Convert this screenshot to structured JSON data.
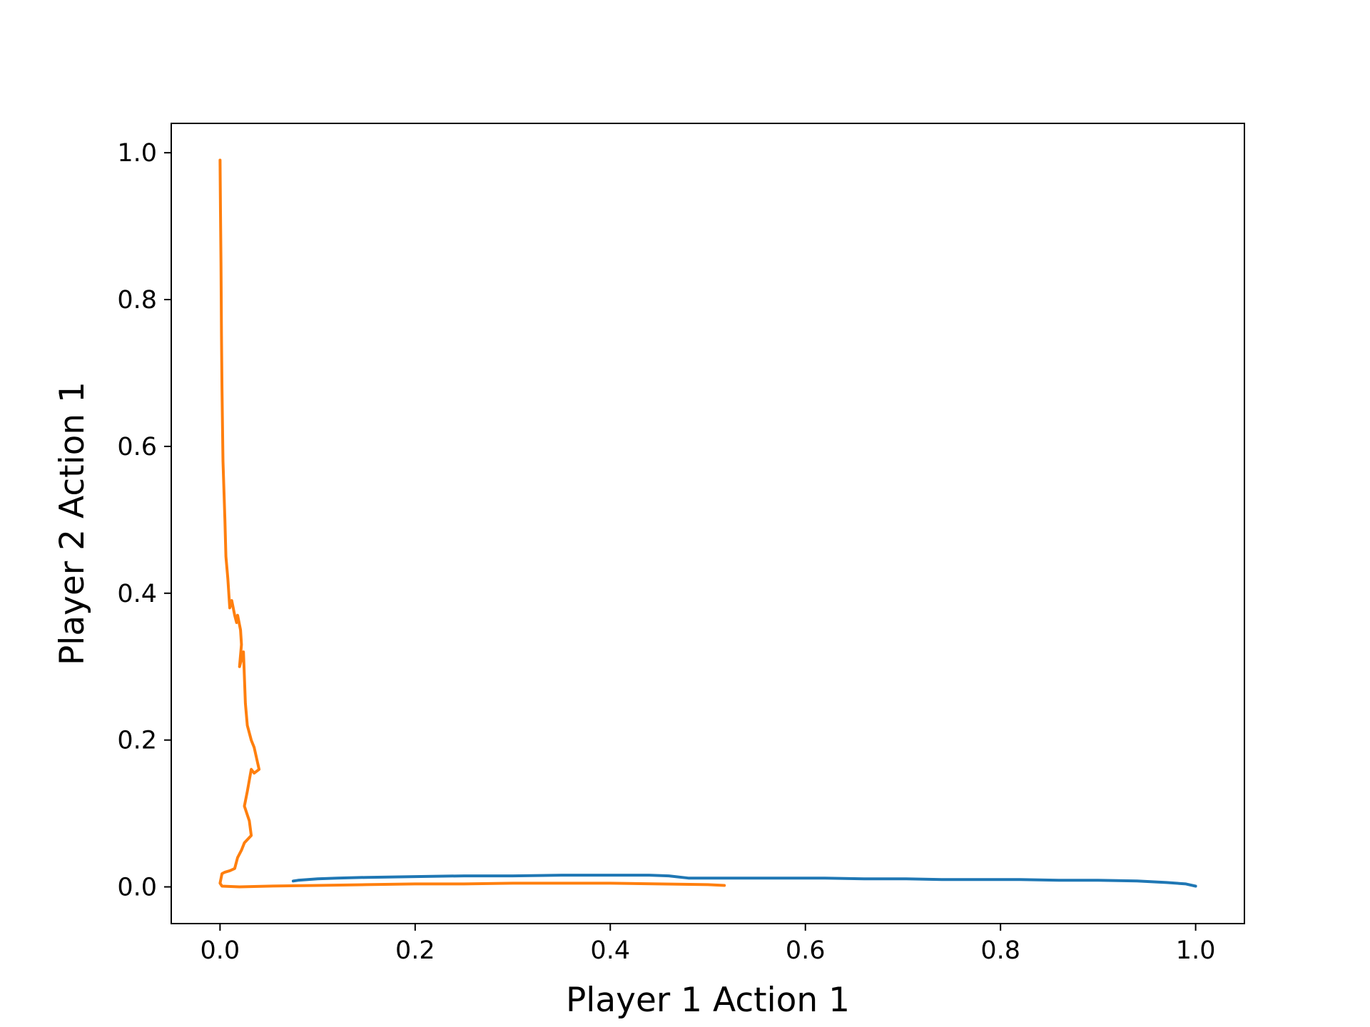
{
  "chart_data": {
    "type": "line",
    "title": "",
    "xlabel": "Player 1 Action 1",
    "ylabel": "Player 2 Action 1",
    "xlim": [
      -0.05,
      1.05
    ],
    "ylim": [
      -0.05,
      1.04
    ],
    "xticks": [
      0.0,
      0.2,
      0.4,
      0.6,
      0.8,
      1.0
    ],
    "xtick_labels": [
      "0.0",
      "0.2",
      "0.4",
      "0.6",
      "0.8",
      "1.0"
    ],
    "yticks": [
      0.0,
      0.2,
      0.4,
      0.6,
      0.8,
      1.0
    ],
    "ytick_labels": [
      "0.0",
      "0.2",
      "0.4",
      "0.6",
      "0.8",
      "1.0"
    ],
    "grid": false,
    "legend": false,
    "series": [
      {
        "color": "#1f77b4",
        "x": [
          1.0,
          0.99,
          0.97,
          0.94,
          0.9,
          0.86,
          0.82,
          0.78,
          0.74,
          0.7,
          0.66,
          0.62,
          0.58,
          0.54,
          0.5,
          0.48,
          0.46,
          0.44,
          0.4,
          0.35,
          0.3,
          0.25,
          0.2,
          0.15,
          0.12,
          0.1,
          0.08,
          0.075
        ],
        "y": [
          0.001,
          0.004,
          0.006,
          0.008,
          0.009,
          0.009,
          0.01,
          0.01,
          0.01,
          0.011,
          0.011,
          0.012,
          0.012,
          0.012,
          0.012,
          0.012,
          0.015,
          0.016,
          0.016,
          0.016,
          0.015,
          0.015,
          0.014,
          0.013,
          0.012,
          0.011,
          0.009,
          0.008
        ]
      },
      {
        "color": "#ff7f0e",
        "x": [
          0.0,
          0.0005,
          0.001,
          0.0015,
          0.002,
          0.003,
          0.005,
          0.006,
          0.008,
          0.01,
          0.012,
          0.015,
          0.017,
          0.018,
          0.021,
          0.022,
          0.02,
          0.024,
          0.026,
          0.028,
          0.032,
          0.035,
          0.04,
          0.035,
          0.032,
          0.028,
          0.025,
          0.03,
          0.032,
          0.025,
          0.022,
          0.018,
          0.015,
          0.01,
          0.005,
          0.002,
          0.0,
          0.002,
          0.02,
          0.05,
          0.1,
          0.15,
          0.2,
          0.25,
          0.3,
          0.35,
          0.4,
          0.45,
          0.5,
          0.517
        ],
        "y": [
          0.99,
          0.92,
          0.85,
          0.75,
          0.68,
          0.58,
          0.5,
          0.45,
          0.42,
          0.38,
          0.39,
          0.37,
          0.36,
          0.37,
          0.35,
          0.33,
          0.3,
          0.32,
          0.25,
          0.22,
          0.2,
          0.19,
          0.16,
          0.155,
          0.16,
          0.13,
          0.11,
          0.09,
          0.07,
          0.06,
          0.05,
          0.04,
          0.025,
          0.022,
          0.02,
          0.018,
          0.005,
          0.001,
          0.0,
          0.001,
          0.002,
          0.003,
          0.004,
          0.004,
          0.005,
          0.005,
          0.005,
          0.004,
          0.003,
          0.002
        ]
      }
    ]
  }
}
